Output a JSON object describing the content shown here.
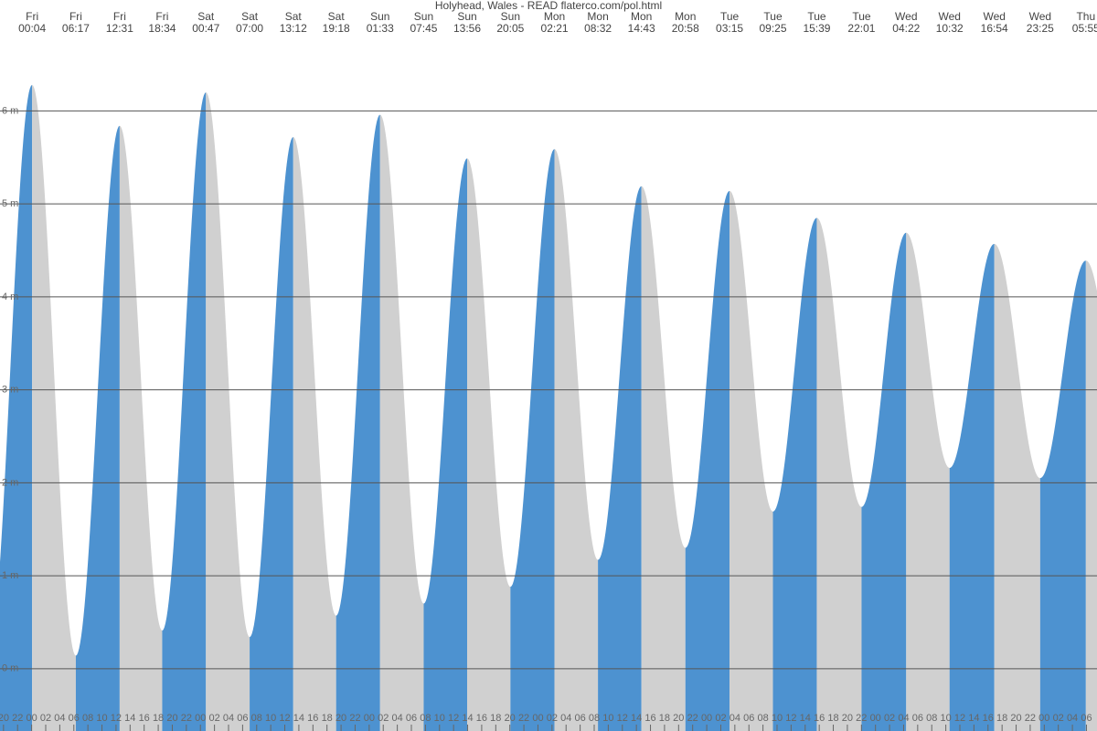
{
  "chart_data": {
    "type": "tide",
    "title": "Holyhead, Wales - READ flaterco.com/pol.html",
    "rise_color": "#4d92d0",
    "fall_color": "#d0d0d0",
    "grid": true,
    "events": [
      {
        "day": "Fri",
        "time": "00:04",
        "height": 6.28
      },
      {
        "day": "Fri",
        "time": "06:17",
        "height": 0.14
      },
      {
        "day": "Fri",
        "time": "12:31",
        "height": 5.84
      },
      {
        "day": "Fri",
        "time": "18:34",
        "height": 0.41
      },
      {
        "day": "Sat",
        "time": "00:47",
        "height": 6.2
      },
      {
        "day": "Sat",
        "time": "07:00",
        "height": 0.34
      },
      {
        "day": "Sat",
        "time": "13:12",
        "height": 5.72
      },
      {
        "day": "Sat",
        "time": "19:18",
        "height": 0.57
      },
      {
        "day": "Sun",
        "time": "01:33",
        "height": 5.96
      },
      {
        "day": "Sun",
        "time": "07:45",
        "height": 0.7
      },
      {
        "day": "Sun",
        "time": "13:56",
        "height": 5.49
      },
      {
        "day": "Sun",
        "time": "20:05",
        "height": 0.88
      },
      {
        "day": "Mon",
        "time": "02:21",
        "height": 5.59
      },
      {
        "day": "Mon",
        "time": "08:32",
        "height": 1.17
      },
      {
        "day": "Mon",
        "time": "14:43",
        "height": 5.19
      },
      {
        "day": "Mon",
        "time": "20:58",
        "height": 1.3
      },
      {
        "day": "Tue",
        "time": "03:15",
        "height": 5.14
      },
      {
        "day": "Tue",
        "time": "09:25",
        "height": 1.69
      },
      {
        "day": "Tue",
        "time": "15:39",
        "height": 4.85
      },
      {
        "day": "Tue",
        "time": "22:01",
        "height": 1.74
      },
      {
        "day": "Wed",
        "time": "04:22",
        "height": 4.69
      },
      {
        "day": "Wed",
        "time": "10:32",
        "height": 2.16
      },
      {
        "day": "Wed",
        "time": "16:54",
        "height": 4.57
      },
      {
        "day": "Wed",
        "time": "23:25",
        "height": 2.05
      },
      {
        "day": "Thu",
        "time": "05:55",
        "height": 4.39
      }
    ],
    "xlim": [
      -4.5,
      151.5
    ],
    "ylim": [
      -0.67,
      6.8
    ],
    "yticks": [
      {
        "value": 0,
        "label": "0 m"
      },
      {
        "value": 1,
        "label": "1 m"
      },
      {
        "value": 2,
        "label": "2 m"
      },
      {
        "value": 3,
        "label": "3 m"
      },
      {
        "value": 4,
        "label": "4 m"
      },
      {
        "value": 5,
        "label": "5 m"
      },
      {
        "value": 6,
        "label": "6 m"
      }
    ],
    "xticks": [
      {
        "value": -4,
        "label": "20"
      },
      {
        "value": -2,
        "label": "22"
      },
      {
        "value": 0,
        "label": "00"
      },
      {
        "value": 2,
        "label": "02"
      },
      {
        "value": 4,
        "label": "04"
      },
      {
        "value": 6,
        "label": "06"
      },
      {
        "value": 8,
        "label": "08"
      },
      {
        "value": 10,
        "label": "10"
      },
      {
        "value": 12,
        "label": "12"
      },
      {
        "value": 14,
        "label": "14"
      },
      {
        "value": 16,
        "label": "16"
      },
      {
        "value": 18,
        "label": "18"
      },
      {
        "value": 20,
        "label": "20"
      },
      {
        "value": 22,
        "label": "22"
      },
      {
        "value": 24,
        "label": "00"
      },
      {
        "value": 26,
        "label": "02"
      },
      {
        "value": 28,
        "label": "04"
      },
      {
        "value": 30,
        "label": "06"
      },
      {
        "value": 32,
        "label": "08"
      },
      {
        "value": 34,
        "label": "10"
      },
      {
        "value": 36,
        "label": "12"
      },
      {
        "value": 38,
        "label": "14"
      },
      {
        "value": 40,
        "label": "16"
      },
      {
        "value": 42,
        "label": "18"
      },
      {
        "value": 44,
        "label": "20"
      },
      {
        "value": 46,
        "label": "22"
      },
      {
        "value": 48,
        "label": "00"
      },
      {
        "value": 50,
        "label": "02"
      },
      {
        "value": 52,
        "label": "04"
      },
      {
        "value": 54,
        "label": "06"
      },
      {
        "value": 56,
        "label": "08"
      },
      {
        "value": 58,
        "label": "10"
      },
      {
        "value": 60,
        "label": "12"
      },
      {
        "value": 62,
        "label": "14"
      },
      {
        "value": 64,
        "label": "16"
      },
      {
        "value": 66,
        "label": "18"
      },
      {
        "value": 68,
        "label": "20"
      },
      {
        "value": 70,
        "label": "22"
      },
      {
        "value": 72,
        "label": "00"
      },
      {
        "value": 74,
        "label": "02"
      },
      {
        "value": 76,
        "label": "04"
      },
      {
        "value": 78,
        "label": "06"
      },
      {
        "value": 80,
        "label": "08"
      },
      {
        "value": 82,
        "label": "10"
      },
      {
        "value": 84,
        "label": "12"
      },
      {
        "value": 86,
        "label": "14"
      },
      {
        "value": 88,
        "label": "16"
      },
      {
        "value": 90,
        "label": "18"
      },
      {
        "value": 92,
        "label": "20"
      },
      {
        "value": 94,
        "label": "22"
      },
      {
        "value": 96,
        "label": "00"
      },
      {
        "value": 98,
        "label": "02"
      },
      {
        "value": 100,
        "label": "04"
      },
      {
        "value": 102,
        "label": "06"
      },
      {
        "value": 104,
        "label": "08"
      },
      {
        "value": 106,
        "label": "10"
      },
      {
        "value": 108,
        "label": "12"
      },
      {
        "value": 110,
        "label": "14"
      },
      {
        "value": 112,
        "label": "16"
      },
      {
        "value": 114,
        "label": "18"
      },
      {
        "value": 116,
        "label": "20"
      },
      {
        "value": 118,
        "label": "22"
      },
      {
        "value": 120,
        "label": "00"
      },
      {
        "value": 122,
        "label": "02"
      },
      {
        "value": 124,
        "label": "04"
      },
      {
        "value": 126,
        "label": "06"
      },
      {
        "value": 128,
        "label": "08"
      },
      {
        "value": 130,
        "label": "10"
      },
      {
        "value": 132,
        "label": "12"
      },
      {
        "value": 134,
        "label": "14"
      },
      {
        "value": 136,
        "label": "16"
      },
      {
        "value": 138,
        "label": "18"
      },
      {
        "value": 140,
        "label": "20"
      },
      {
        "value": 142,
        "label": "22"
      },
      {
        "value": 144,
        "label": "00"
      },
      {
        "value": 146,
        "label": "02"
      },
      {
        "value": 148,
        "label": "04"
      },
      {
        "value": 150,
        "label": "06"
      }
    ]
  }
}
